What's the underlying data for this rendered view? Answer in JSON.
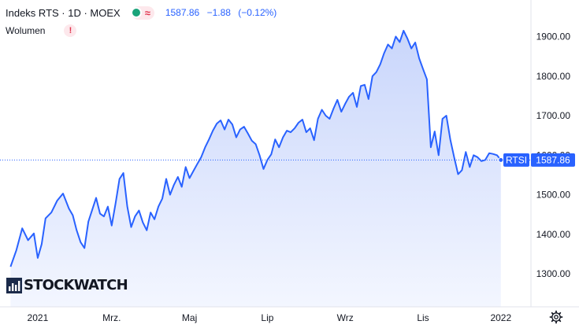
{
  "header": {
    "title": "Indeks RTS · 1D · MOEX",
    "last": "1587.86",
    "change": "−1.88",
    "change_pct": "(−0.12%)",
    "status_icon": "approx-icon"
  },
  "volume": {
    "label": "Wolumen",
    "badge": "!"
  },
  "logo": {
    "text": "STOCKWATCH"
  },
  "price_tag": {
    "symbol": "RTSI",
    "value": "1587.86"
  },
  "colors": {
    "line": "#2962ff",
    "area_top": "#c9d6fb",
    "area_bottom": "#f3f6ff",
    "axis_text": "#131722",
    "tag_bg": "#2962ff"
  },
  "chart_data": {
    "type": "area",
    "title": "Indeks RTS · 1D · MOEX",
    "xlabel": "",
    "ylabel": "",
    "ylim": [
      1237,
      1940
    ],
    "y_ticks": [
      1300,
      1400,
      1500,
      1600,
      1700,
      1800,
      1900
    ],
    "y_tick_labels": [
      "1300.00",
      "1400.00",
      "1500.00",
      "1600.00",
      "1700.00",
      "1800.00",
      "1900.00"
    ],
    "x_tick_labels": [
      {
        "label": "2021",
        "x": 0.1
      },
      {
        "label": "Mrz.",
        "x": 2.0
      },
      {
        "label": "Maj",
        "x": 4.0
      },
      {
        "label": "Lip",
        "x": 6.0
      },
      {
        "label": "Wrz",
        "x": 8.0
      },
      {
        "label": "Lis",
        "x": 10.0
      },
      {
        "label": "2022",
        "x": 12.0
      }
    ],
    "x_unit": "months since Jan 2021",
    "last_value": 1587.86,
    "grid": false,
    "series": [
      {
        "name": "RTSI",
        "x": [
          -0.6,
          -0.45,
          -0.3,
          -0.15,
          0.0,
          0.1,
          0.2,
          0.3,
          0.45,
          0.6,
          0.75,
          0.9,
          1.0,
          1.1,
          1.2,
          1.3,
          1.4,
          1.5,
          1.6,
          1.7,
          1.8,
          1.9,
          2.0,
          2.1,
          2.2,
          2.3,
          2.4,
          2.5,
          2.6,
          2.7,
          2.8,
          2.9,
          3.0,
          3.1,
          3.2,
          3.3,
          3.4,
          3.5,
          3.6,
          3.7,
          3.8,
          3.9,
          4.0,
          4.1,
          4.2,
          4.3,
          4.4,
          4.5,
          4.6,
          4.7,
          4.8,
          4.9,
          5.0,
          5.1,
          5.2,
          5.3,
          5.4,
          5.5,
          5.6,
          5.7,
          5.8,
          5.9,
          6.0,
          6.1,
          6.2,
          6.3,
          6.4,
          6.5,
          6.6,
          6.7,
          6.8,
          6.9,
          7.0,
          7.1,
          7.2,
          7.3,
          7.4,
          7.5,
          7.6,
          7.7,
          7.8,
          7.9,
          8.0,
          8.1,
          8.2,
          8.3,
          8.4,
          8.5,
          8.6,
          8.7,
          8.8,
          8.9,
          9.0,
          9.1,
          9.2,
          9.3,
          9.4,
          9.5,
          9.6,
          9.7,
          9.8,
          9.9,
          10.0,
          10.1,
          10.2,
          10.3,
          10.4,
          10.5,
          10.6,
          10.7,
          10.8,
          10.9,
          11.0,
          11.1,
          11.2,
          11.3,
          11.4,
          11.5,
          11.6,
          11.7,
          11.8,
          11.9,
          12.0
        ],
        "y": [
          1318,
          1360,
          1415,
          1385,
          1402,
          1340,
          1375,
          1440,
          1455,
          1485,
          1503,
          1465,
          1448,
          1410,
          1380,
          1365,
          1432,
          1462,
          1492,
          1452,
          1445,
          1470,
          1422,
          1478,
          1540,
          1555,
          1470,
          1418,
          1445,
          1460,
          1430,
          1410,
          1455,
          1438,
          1470,
          1490,
          1540,
          1500,
          1525,
          1545,
          1520,
          1570,
          1542,
          1560,
          1578,
          1595,
          1620,
          1640,
          1662,
          1680,
          1688,
          1665,
          1690,
          1678,
          1645,
          1665,
          1672,
          1655,
          1637,
          1628,
          1600,
          1565,
          1588,
          1602,
          1640,
          1620,
          1645,
          1662,
          1658,
          1668,
          1682,
          1690,
          1658,
          1668,
          1638,
          1692,
          1715,
          1700,
          1692,
          1718,
          1740,
          1710,
          1730,
          1748,
          1758,
          1722,
          1775,
          1778,
          1742,
          1800,
          1810,
          1830,
          1858,
          1880,
          1870,
          1900,
          1886,
          1915,
          1895,
          1870,
          1885,
          1845,
          1818,
          1792,
          1620,
          1660,
          1600,
          1692,
          1700,
          1640,
          1595,
          1552,
          1562,
          1608,
          1570,
          1600,
          1595,
          1585,
          1588,
          1605,
          1603,
          1600,
          1587.86
        ]
      }
    ]
  }
}
